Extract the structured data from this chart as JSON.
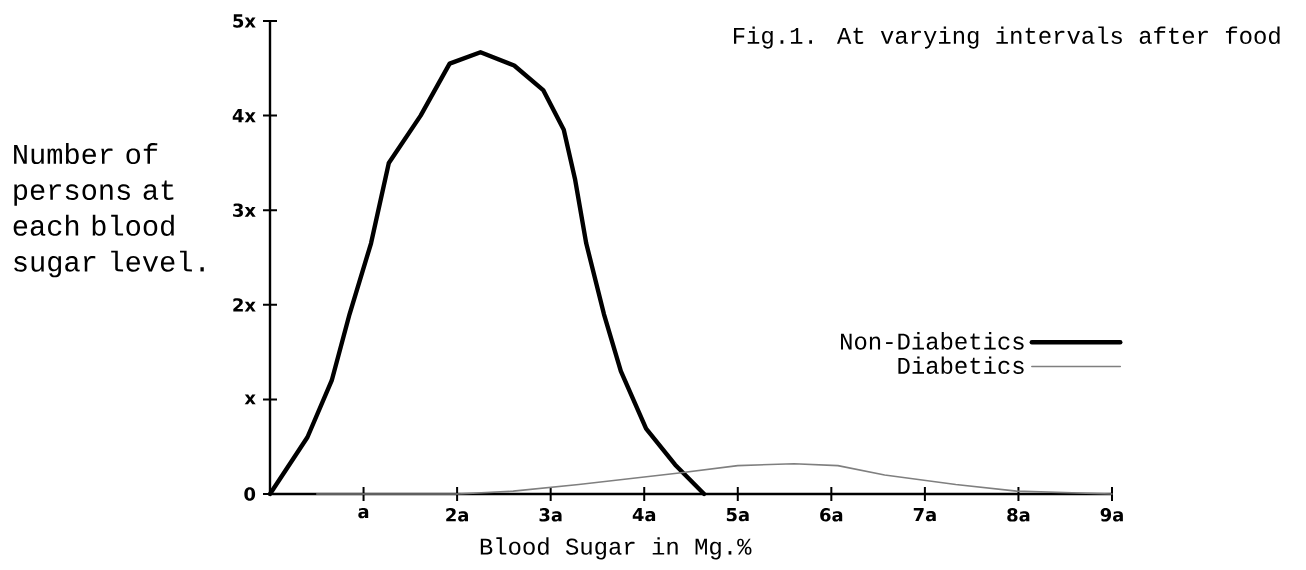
{
  "chart_data": {
    "type": "line",
    "title": "Fig.1. At varying intervals after food",
    "xlabel": "Blood Sugar in Mg.%",
    "ylabel": "Number of persons at each blood sugar level.",
    "xlim": [
      0,
      9
    ],
    "ylim": [
      0,
      5
    ],
    "xticks": [
      {
        "value": 1,
        "label": "a"
      },
      {
        "value": 2,
        "label": "2a"
      },
      {
        "value": 3,
        "label": "3a"
      },
      {
        "value": 4,
        "label": "4a"
      },
      {
        "value": 5,
        "label": "5a"
      },
      {
        "value": 6,
        "label": "6a"
      },
      {
        "value": 7,
        "label": "7a"
      },
      {
        "value": 8,
        "label": "8a"
      },
      {
        "value": 9,
        "label": "9a"
      }
    ],
    "yticks": [
      0,
      {
        "value": 1,
        "label": "x"
      },
      {
        "value": 2,
        "label": "2x"
      },
      {
        "value": 3,
        "label": "3x"
      },
      {
        "value": 4,
        "label": "4x"
      },
      {
        "value": 5,
        "label": "5x"
      }
    ],
    "series": [
      {
        "name": "Non-Diabetics",
        "color": "#000000",
        "x": [
          0,
          0.4,
          0.66,
          0.85,
          1.08,
          1.27,
          1.61,
          1.92,
          2.25,
          2.61,
          2.92,
          3.14,
          3.26,
          3.38,
          3.57,
          3.75,
          4.02,
          4.33,
          4.64
        ],
        "values": [
          0,
          0.6,
          1.2,
          1.9,
          2.65,
          3.5,
          4.0,
          4.55,
          4.67,
          4.53,
          4.27,
          3.85,
          3.33,
          2.65,
          1.9,
          1.3,
          0.69,
          0.31,
          0
        ]
      },
      {
        "name": "Diabetics",
        "color": "#7f7f7f",
        "x": [
          0.5,
          2.0,
          2.6,
          3.3,
          4.35,
          5.0,
          5.6,
          6.07,
          6.57,
          7.33,
          7.98,
          9.0
        ],
        "values": [
          0,
          0,
          0.03,
          0.1,
          0.22,
          0.3,
          0.32,
          0.3,
          0.2,
          0.1,
          0.03,
          0
        ]
      }
    ],
    "legend": "right",
    "grid": false,
    "marker": "none",
    "line_style": "solid"
  }
}
